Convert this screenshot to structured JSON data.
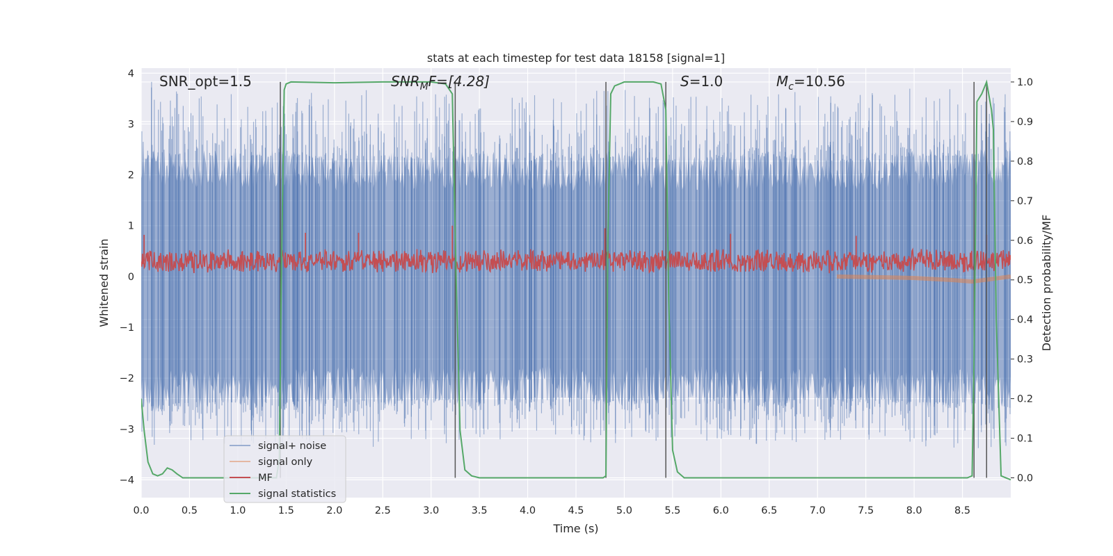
{
  "chart_data": {
    "type": "line",
    "title": "stats at each timestep for test data 18158 [signal=1]",
    "xlabel": "Time (s)",
    "ylabel": "Whitened strain",
    "ylabel_right": "Detection probability/MF",
    "xlim": [
      0.0,
      9.0
    ],
    "ylim": [
      -4.35,
      4.1
    ],
    "ylim_right": [
      -0.05,
      1.035
    ],
    "x_ticks": [
      "0.0",
      "0.5",
      "1.0",
      "1.5",
      "2.0",
      "2.5",
      "3.0",
      "3.5",
      "4.0",
      "4.5",
      "5.0",
      "5.5",
      "6.0",
      "6.5",
      "7.0",
      "7.5",
      "8.0",
      "8.5"
    ],
    "y_ticks": [
      "4",
      "3",
      "2",
      "1",
      "0",
      "−1",
      "−2",
      "−3",
      "−4"
    ],
    "y_ticks_right": [
      "1.0",
      "0.9",
      "0.8",
      "0.7",
      "0.6",
      "0.5",
      "0.4",
      "0.3",
      "0.2",
      "0.1",
      "0.0"
    ],
    "grid": true,
    "legend_position": "bottom-left",
    "annotations": {
      "snr_opt": "SNR_opt=1.5",
      "snr_mf_main": "SNR",
      "snr_mf_sub": "M",
      "snr_mf_rest": "F=[4.28]",
      "s_main": "S",
      "s_rest": "=1.0",
      "mc_main": "M",
      "mc_sub": "c",
      "mc_rest": "=10.56"
    },
    "series": [
      {
        "name": "signal+ noise",
        "color": "#4c72b0",
        "axis": "left",
        "envelope": {
          "t": [
            0.0,
            0.5,
            1.0,
            1.5,
            2.0,
            2.5,
            3.0,
            3.5,
            4.0,
            4.5,
            5.0,
            5.5,
            6.0,
            6.5,
            7.0,
            7.5,
            8.0,
            8.5,
            9.0
          ],
          "upper": [
            2.6,
            2.5,
            2.5,
            2.5,
            2.4,
            2.5,
            2.4,
            2.5,
            2.4,
            2.4,
            2.5,
            2.4,
            2.4,
            2.5,
            2.4,
            2.4,
            2.5,
            2.5,
            2.6
          ],
          "lower": [
            -2.7,
            -2.6,
            -2.6,
            -2.6,
            -2.5,
            -2.6,
            -2.5,
            -2.6,
            -2.5,
            -2.5,
            -2.6,
            -2.5,
            -2.5,
            -2.6,
            -2.5,
            -2.5,
            -2.6,
            -2.6,
            -2.7
          ]
        }
      },
      {
        "name": "signal only",
        "color": "#dd8452",
        "axis": "left",
        "x": [
          7.2,
          7.5,
          7.8,
          8.0,
          8.2,
          8.4,
          8.6,
          8.8,
          9.0
        ],
        "y": [
          0.0,
          -0.01,
          -0.02,
          -0.03,
          -0.05,
          -0.07,
          -0.1,
          -0.05,
          0.0
        ]
      },
      {
        "name": "MF",
        "color": "#c44e52",
        "axis": "left",
        "baseline": 0.3,
        "spread": 0.25,
        "peaks": [
          {
            "x": 0.03,
            "y": 0.82
          },
          {
            "x": 1.7,
            "y": 0.86
          },
          {
            "x": 2.25,
            "y": 0.86
          },
          {
            "x": 3.22,
            "y": 1.0
          },
          {
            "x": 4.8,
            "y": 0.95
          },
          {
            "x": 6.1,
            "y": 0.84
          },
          {
            "x": 7.4,
            "y": 0.8
          },
          {
            "x": 8.75,
            "y": 0.82
          }
        ]
      },
      {
        "name": "signal statistics",
        "color": "#55a868",
        "axis": "right",
        "x": [
          0.0,
          0.03,
          0.07,
          0.12,
          0.17,
          0.22,
          0.27,
          0.32,
          0.37,
          0.43,
          0.5,
          1.0,
          1.4,
          1.43,
          1.45,
          1.48,
          1.5,
          1.55,
          2.0,
          2.5,
          3.0,
          3.15,
          3.22,
          3.26,
          3.3,
          3.35,
          3.42,
          3.5,
          4.0,
          4.5,
          4.78,
          4.81,
          4.83,
          4.86,
          4.9,
          5.0,
          5.3,
          5.38,
          5.43,
          5.46,
          5.5,
          5.55,
          5.62,
          5.7,
          6.0,
          7.0,
          8.0,
          8.55,
          8.6,
          8.62,
          8.65,
          8.7,
          8.75,
          8.8,
          8.82,
          8.85,
          8.9,
          8.95,
          9.0
        ],
        "y": [
          0.2,
          0.12,
          0.04,
          0.01,
          0.005,
          0.01,
          0.025,
          0.02,
          0.01,
          0.0,
          0.0,
          0.0,
          0.0,
          0.05,
          0.5,
          0.98,
          0.995,
          1.0,
          0.998,
          1.0,
          1.0,
          0.995,
          0.97,
          0.5,
          0.12,
          0.02,
          0.005,
          0.0,
          0.0,
          0.0,
          0.0,
          0.005,
          0.6,
          0.97,
          0.99,
          1.0,
          1.0,
          0.995,
          0.93,
          0.45,
          0.07,
          0.015,
          0.0,
          0.0,
          0.0,
          0.0,
          0.0,
          0.0,
          0.005,
          0.3,
          0.95,
          0.97,
          1.0,
          0.93,
          0.88,
          0.4,
          0.005,
          0.0,
          -0.005
        ]
      }
    ],
    "vlines": [
      1.44,
      3.25,
      4.81,
      5.43,
      8.62,
      8.75
    ]
  }
}
